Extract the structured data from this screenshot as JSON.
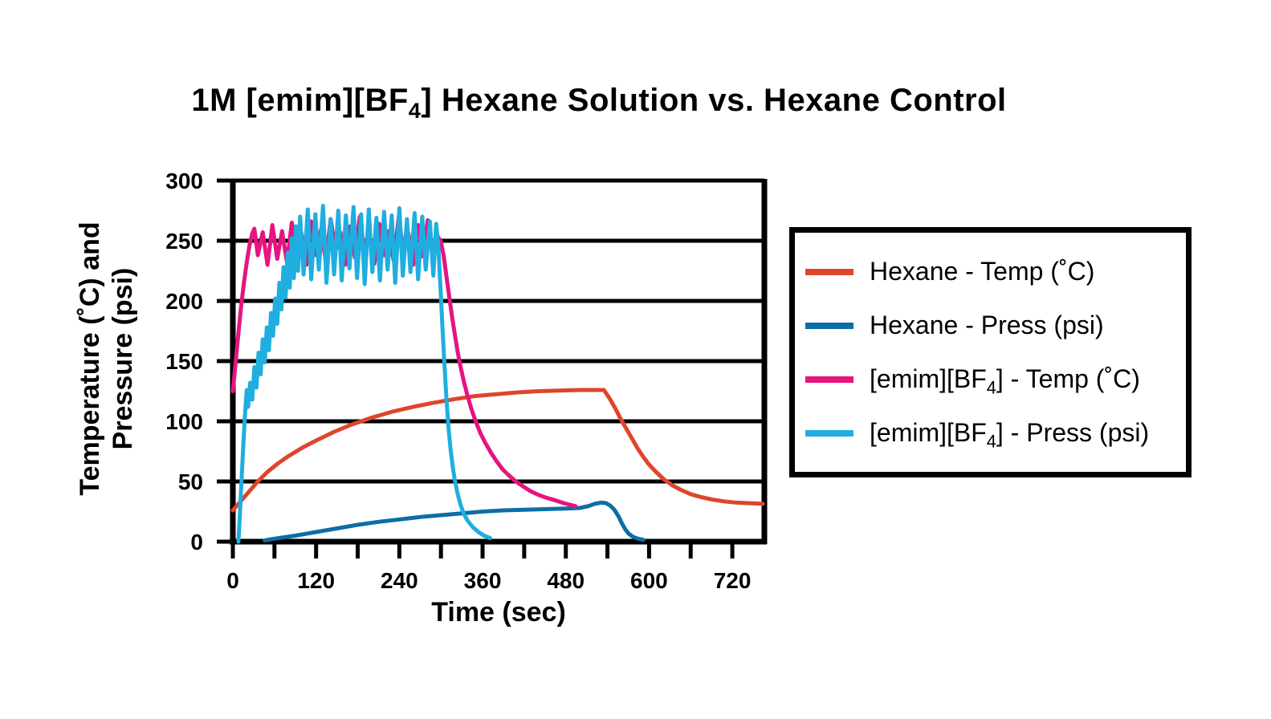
{
  "title": {
    "pre": "1M [emim][BF",
    "sub": "4",
    "post": "] Hexane Solution vs. Hexane Control"
  },
  "axes": {
    "x": {
      "title": "Time (sec)",
      "minor_ticks": [
        0,
        60,
        120,
        180,
        240,
        300,
        360,
        420,
        480,
        540,
        600,
        660,
        720
      ],
      "labeled_ticks": [
        {
          "value": 0,
          "label": "0"
        },
        {
          "value": 120,
          "label": "120"
        },
        {
          "value": 240,
          "label": "240"
        },
        {
          "value": 360,
          "label": "360"
        },
        {
          "value": 480,
          "label": "480"
        },
        {
          "value": 600,
          "label": "600"
        },
        {
          "value": 720,
          "label": "720"
        }
      ]
    },
    "y": {
      "title_line1": "Temperature (˚C) and",
      "title_line2": "Pressure (psi)",
      "ticks": [
        {
          "value": 0,
          "label": "0"
        },
        {
          "value": 50,
          "label": "50"
        },
        {
          "value": 100,
          "label": "100"
        },
        {
          "value": 150,
          "label": "150"
        },
        {
          "value": 200,
          "label": "200"
        },
        {
          "value": 250,
          "label": "250"
        },
        {
          "value": 300,
          "label": "300"
        }
      ]
    }
  },
  "legend": {
    "items": [
      {
        "pre": "Hexane - Temp (˚C)",
        "sub": "",
        "post": ""
      },
      {
        "pre": "Hexane - Press (psi)",
        "sub": "",
        "post": ""
      },
      {
        "pre": "[emim][BF",
        "sub": "4",
        "post": "] - Temp (˚C)"
      },
      {
        "pre": "[emim][BF",
        "sub": "4",
        "post": "] - Press (psi)"
      }
    ]
  },
  "chart_data": {
    "type": "line",
    "title": "1M [emim][BF4] Hexane Solution vs. Hexane Control",
    "xlabel": "Time (sec)",
    "ylabel": "Temperature (˚C) and Pressure (psi)",
    "xlim": [
      0,
      765
    ],
    "ylim": [
      0,
      300
    ],
    "x_tick_interval": 60,
    "x_label_interval": 120,
    "y_tick_interval": 50,
    "grid": "horizontal gridlines every 50 units, boxed plot frame",
    "legend_position": "right, boxed",
    "background_color": "#FFFFFF",
    "axis_color": "#000000",
    "series": [
      {
        "name": "Hexane - Temp (C)",
        "color": "#DE452B",
        "points": [
          [
            0,
            26
          ],
          [
            12,
            34
          ],
          [
            24,
            42
          ],
          [
            36,
            50
          ],
          [
            50,
            58
          ],
          [
            65,
            65
          ],
          [
            80,
            71
          ],
          [
            100,
            78
          ],
          [
            120,
            84
          ],
          [
            145,
            91
          ],
          [
            170,
            97
          ],
          [
            200,
            103
          ],
          [
            230,
            108
          ],
          [
            260,
            112
          ],
          [
            290,
            115.5
          ],
          [
            320,
            118.5
          ],
          [
            350,
            121
          ],
          [
            380,
            122.5
          ],
          [
            410,
            124
          ],
          [
            440,
            125
          ],
          [
            470,
            125.5
          ],
          [
            500,
            126
          ],
          [
            535,
            126
          ],
          [
            543,
            119
          ],
          [
            551,
            111
          ],
          [
            559,
            102
          ],
          [
            567,
            94
          ],
          [
            575,
            86
          ],
          [
            583,
            78
          ],
          [
            591,
            71
          ],
          [
            600,
            64
          ],
          [
            610,
            58
          ],
          [
            621,
            52
          ],
          [
            633,
            47
          ],
          [
            646,
            43
          ],
          [
            660,
            39.5
          ],
          [
            675,
            37
          ],
          [
            691,
            35
          ],
          [
            708,
            33.5
          ],
          [
            725,
            32.5
          ],
          [
            743,
            32
          ],
          [
            764,
            31.5
          ]
        ]
      },
      {
        "name": "Hexane - Press (psi)",
        "color": "#0C6EA4",
        "points": [
          [
            46,
            1
          ],
          [
            60,
            2.5
          ],
          [
            90,
            5
          ],
          [
            120,
            8
          ],
          [
            150,
            11
          ],
          [
            180,
            14
          ],
          [
            210,
            16.5
          ],
          [
            240,
            18.5
          ],
          [
            270,
            20.5
          ],
          [
            300,
            22
          ],
          [
            330,
            23.5
          ],
          [
            360,
            25
          ],
          [
            390,
            26
          ],
          [
            420,
            26.5
          ],
          [
            450,
            27
          ],
          [
            480,
            27.5
          ],
          [
            500,
            28
          ],
          [
            512,
            29.5
          ],
          [
            522,
            31.5
          ],
          [
            531,
            32.5
          ],
          [
            538,
            32
          ],
          [
            544,
            30
          ],
          [
            550,
            26.5
          ],
          [
            556,
            21
          ],
          [
            561,
            15
          ],
          [
            566,
            10
          ],
          [
            571,
            6.5
          ],
          [
            577,
            4
          ],
          [
            584,
            2.5
          ],
          [
            592,
            1.5
          ]
        ]
      },
      {
        "name": "[emim][BF4] - Temp (C)",
        "color": "#E51480",
        "points": [
          [
            0,
            125
          ],
          [
            4,
            149
          ],
          [
            8,
            173
          ],
          [
            12,
            196
          ],
          [
            16,
            215
          ],
          [
            20,
            232
          ],
          [
            24,
            246
          ],
          [
            28,
            256
          ],
          [
            31,
            260
          ],
          [
            36,
            238
          ],
          [
            43,
            257
          ],
          [
            50,
            230
          ],
          [
            57,
            263
          ],
          [
            64,
            235
          ],
          [
            71,
            258
          ],
          [
            78,
            232
          ],
          [
            85,
            265
          ],
          [
            92,
            240
          ],
          [
            99,
            256
          ],
          [
            106,
            230
          ],
          [
            113,
            266
          ],
          [
            120,
            238
          ],
          [
            127,
            259
          ],
          [
            134,
            233
          ],
          [
            141,
            268
          ],
          [
            148,
            242
          ],
          [
            155,
            257
          ],
          [
            162,
            230
          ],
          [
            169,
            262
          ],
          [
            176,
            236
          ],
          [
            183,
            270
          ],
          [
            190,
            240
          ],
          [
            197,
            255
          ],
          [
            204,
            231
          ],
          [
            211,
            264
          ],
          [
            218,
            238
          ],
          [
            225,
            258
          ],
          [
            232,
            233
          ],
          [
            239,
            269
          ],
          [
            246,
            241
          ],
          [
            253,
            256
          ],
          [
            260,
            230
          ],
          [
            267,
            263
          ],
          [
            274,
            237
          ],
          [
            281,
            267
          ],
          [
            288,
            242
          ],
          [
            295,
            254
          ],
          [
            300,
            249
          ],
          [
            304,
            237
          ],
          [
            308,
            220
          ],
          [
            312,
            203
          ],
          [
            316,
            187
          ],
          [
            320,
            172
          ],
          [
            324,
            158
          ],
          [
            328,
            146
          ],
          [
            333,
            133
          ],
          [
            338,
            122
          ],
          [
            344,
            110
          ],
          [
            350,
            100
          ],
          [
            357,
            90
          ],
          [
            364,
            82
          ],
          [
            372,
            74
          ],
          [
            380,
            67
          ],
          [
            389,
            60
          ],
          [
            398,
            55
          ],
          [
            408,
            50
          ],
          [
            418,
            46
          ],
          [
            429,
            42
          ],
          [
            440,
            39
          ],
          [
            452,
            36.5
          ],
          [
            464,
            34.5
          ],
          [
            477,
            32
          ],
          [
            494,
            29.5
          ]
        ]
      },
      {
        "name": "[emim][BF4] - Press (psi)",
        "color": "#1FAEDF",
        "points": [
          [
            8,
            0
          ],
          [
            10,
            20
          ],
          [
            12,
            45
          ],
          [
            14,
            68
          ],
          [
            16,
            90
          ],
          [
            18,
            110
          ],
          [
            20,
            126
          ],
          [
            22,
            112
          ],
          [
            25,
            132
          ],
          [
            28,
            118
          ],
          [
            31,
            145
          ],
          [
            34,
            128
          ],
          [
            37,
            157
          ],
          [
            40,
            139
          ],
          [
            43,
            168
          ],
          [
            46,
            149
          ],
          [
            49,
            178
          ],
          [
            52,
            159
          ],
          [
            55,
            190
          ],
          [
            58,
            171
          ],
          [
            61,
            202
          ],
          [
            64,
            181
          ],
          [
            67,
            215
          ],
          [
            70,
            193
          ],
          [
            73,
            228
          ],
          [
            76,
            203
          ],
          [
            79,
            240
          ],
          [
            82,
            211
          ],
          [
            85,
            252
          ],
          [
            88,
            219
          ],
          [
            91,
            262
          ],
          [
            94,
            225
          ],
          [
            97,
            270
          ],
          [
            102,
            222
          ],
          [
            108,
            276
          ],
          [
            113,
            218
          ],
          [
            119,
            272
          ],
          [
            124,
            226
          ],
          [
            130,
            279
          ],
          [
            135,
            215
          ],
          [
            141,
            268
          ],
          [
            146,
            222
          ],
          [
            152,
            275
          ],
          [
            157,
            217
          ],
          [
            163,
            271
          ],
          [
            168,
            227
          ],
          [
            174,
            278
          ],
          [
            179,
            219
          ],
          [
            185,
            272
          ],
          [
            190,
            214
          ],
          [
            196,
            276
          ],
          [
            201,
            224
          ],
          [
            207,
            269
          ],
          [
            212,
            217
          ],
          [
            218,
            274
          ],
          [
            223,
            226
          ],
          [
            229,
            271
          ],
          [
            234,
            215
          ],
          [
            240,
            277
          ],
          [
            245,
            221
          ],
          [
            251,
            268
          ],
          [
            256,
            224
          ],
          [
            262,
            273
          ],
          [
            267,
            218
          ],
          [
            273,
            270
          ],
          [
            278,
            226
          ],
          [
            284,
            266
          ],
          [
            289,
            221
          ],
          [
            293,
            264
          ],
          [
            296,
            248
          ],
          [
            299,
            215
          ],
          [
            302,
            180
          ],
          [
            305,
            148
          ],
          [
            308,
            118
          ],
          [
            311,
            94
          ],
          [
            314,
            76
          ],
          [
            317,
            62
          ],
          [
            320,
            51
          ],
          [
            324,
            40
          ],
          [
            328,
            31
          ],
          [
            333,
            23
          ],
          [
            339,
            17
          ],
          [
            346,
            12
          ],
          [
            354,
            8
          ],
          [
            362,
            5
          ],
          [
            371,
            3
          ]
        ]
      }
    ]
  }
}
